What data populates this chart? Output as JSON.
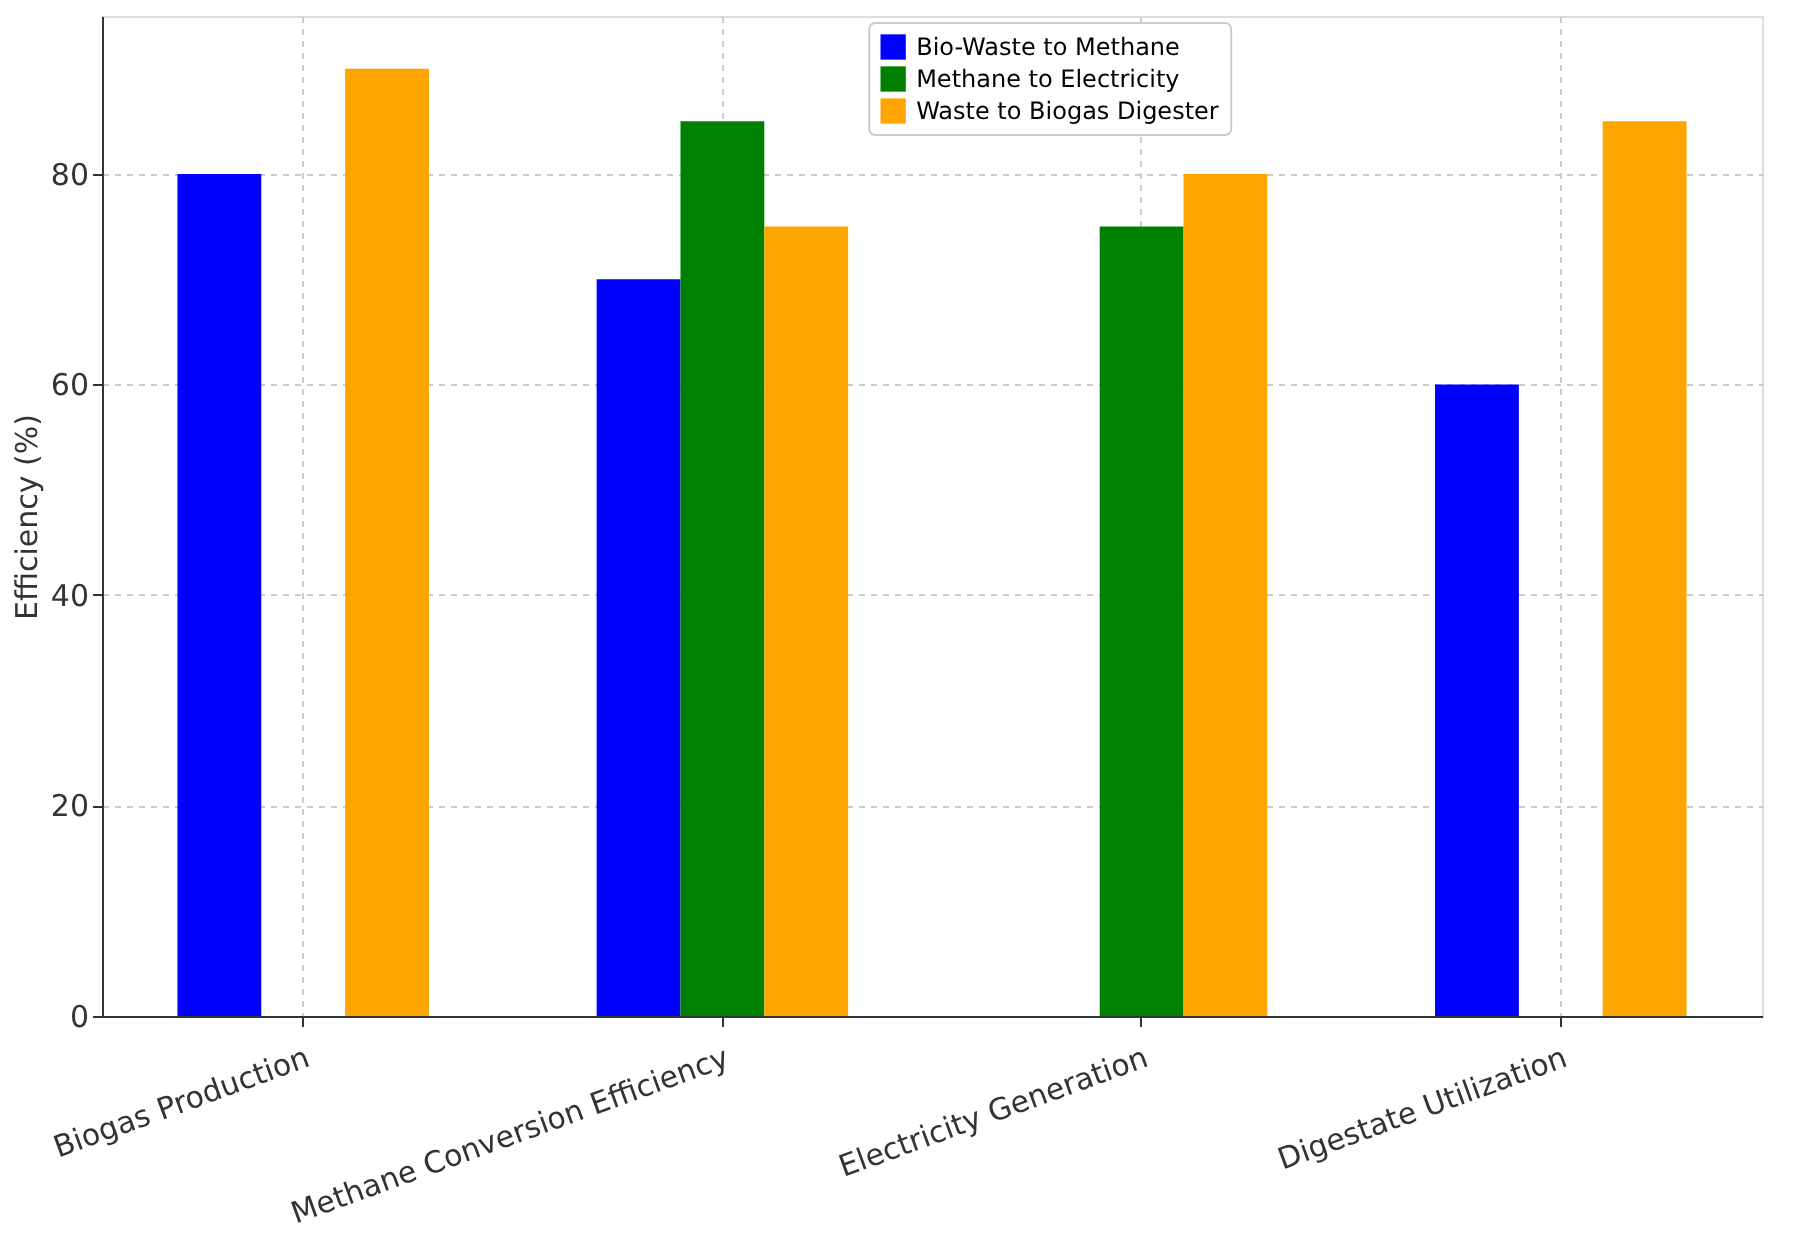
{
  "chart_data": {
    "type": "bar",
    "ylabel": "Efficiency (%)",
    "categories": [
      "Biogas Production",
      "Methane Conversion Efficiency",
      "Electricity Generation",
      "Digestate Utilization"
    ],
    "series": [
      {
        "name": "Bio-Waste to Methane",
        "color": "#0000ff",
        "values": [
          80,
          70,
          null,
          60
        ]
      },
      {
        "name": "Methane to Electricity",
        "color": "#008000",
        "values": [
          null,
          85,
          75,
          null
        ]
      },
      {
        "name": "Waste to Biogas Digester",
        "color": "#ffa500",
        "values": [
          90,
          75,
          80,
          85
        ]
      }
    ],
    "ylim": [
      0,
      95
    ],
    "yticks": [
      0,
      20,
      40,
      60,
      80
    ],
    "grid": true,
    "legend": "top"
  }
}
